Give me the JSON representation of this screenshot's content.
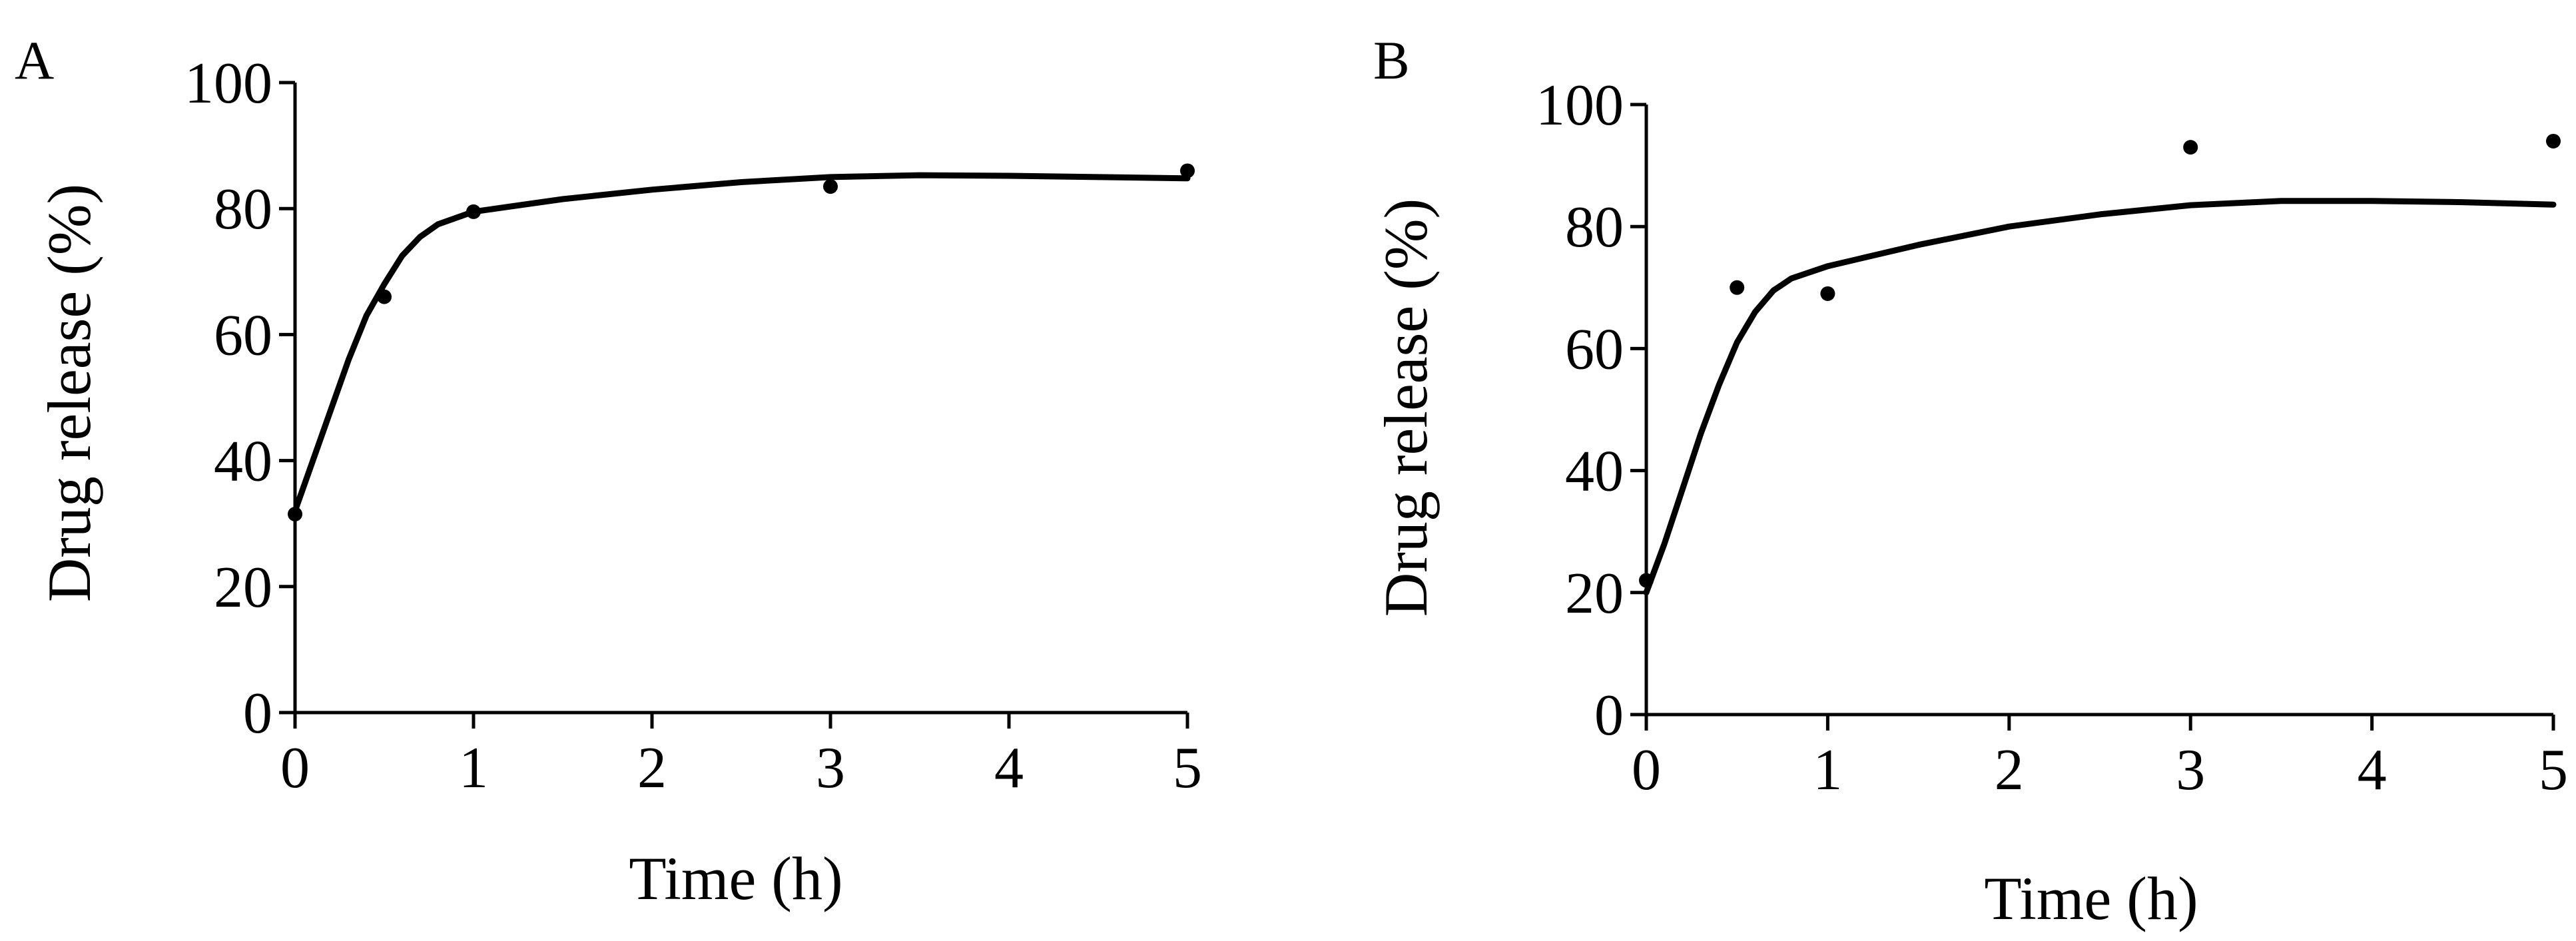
{
  "chart_data": [
    {
      "type": "scatter",
      "panel": "A",
      "xlabel": "Time (h)",
      "ylabel": "Drug release (%)",
      "xlim": [
        0,
        5
      ],
      "ylim": [
        0,
        100
      ],
      "x_ticks": [
        "0",
        "1",
        "2",
        "3",
        "4",
        "5"
      ],
      "y_ticks": [
        "0",
        "20",
        "40",
        "60",
        "80",
        "100"
      ],
      "grid": false,
      "legend": "none",
      "series": [
        {
          "kind": "points",
          "x": [
            0,
            0.5,
            1,
            3,
            5
          ],
          "y": [
            31.5,
            66,
            79.5,
            83.5,
            86
          ]
        },
        {
          "kind": "fit-line",
          "x": [
            0,
            0.1,
            0.2,
            0.3,
            0.4,
            0.5,
            0.6,
            0.7,
            0.8,
            1,
            1.5,
            2,
            2.5,
            3,
            3.5,
            4,
            4.5,
            5
          ],
          "y": [
            32,
            40,
            48,
            56,
            63,
            68,
            72.5,
            75.5,
            77.5,
            79.5,
            81.5,
            83,
            84.2,
            85,
            85.3,
            85.2,
            85,
            84.8
          ]
        }
      ]
    },
    {
      "type": "scatter",
      "panel": "B",
      "xlabel": "Time (h)",
      "ylabel": "Drug release (%)",
      "xlim": [
        0,
        5
      ],
      "ylim": [
        0,
        100
      ],
      "x_ticks": [
        "0",
        "1",
        "2",
        "3",
        "4",
        "5"
      ],
      "y_ticks": [
        "0",
        "20",
        "40",
        "60",
        "80",
        "100"
      ],
      "grid": false,
      "legend": "none",
      "series": [
        {
          "kind": "points",
          "x": [
            0,
            0.5,
            1,
            3,
            5
          ],
          "y": [
            22,
            70,
            69,
            93,
            94
          ]
        },
        {
          "kind": "fit-line",
          "x": [
            0,
            0.1,
            0.2,
            0.3,
            0.4,
            0.5,
            0.6,
            0.7,
            0.8,
            1,
            1.5,
            2,
            2.5,
            3,
            3.5,
            4,
            4.5,
            5
          ],
          "y": [
            20,
            28,
            37,
            46,
            54,
            61,
            66,
            69.5,
            71.5,
            73.5,
            77,
            80,
            82,
            83.5,
            84.2,
            84.2,
            84,
            83.6
          ]
        }
      ]
    }
  ],
  "style": {
    "ink": "#000000",
    "background": "#ffffff"
  }
}
